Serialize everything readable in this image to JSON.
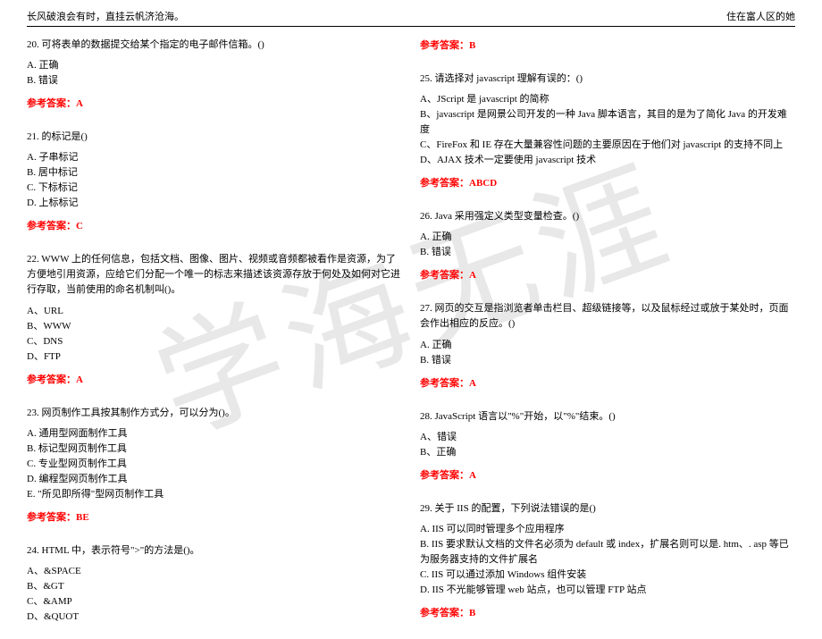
{
  "header": {
    "left": "长风破浪会有时，直挂云帆济沧海。",
    "right": "住在富人区的她"
  },
  "watermark": "学海无涯",
  "ans_label": "参考答案：",
  "left": {
    "q20": {
      "stem": "20. 可将表单的数据提交给某个指定的电子邮件信箱。()",
      "a": "A. 正确",
      "b": "B. 错误",
      "ans": "A"
    },
    "q21": {
      "stem": "21. 的标记是()",
      "a": "A. 子串标记",
      "b": "B. 居中标记",
      "c": "C. 下标标记",
      "d": "D. 上标标记",
      "ans": "C"
    },
    "q22": {
      "stem": "22. WWW 上的任何信息，包括文档、图像、图片、视频或音频都被看作是资源，为了方便地引用资源，应给它们分配一个唯一的标志来描述该资源存放于何处及如何对它进行存取，当前使用的命名机制叫()。",
      "a": "A、URL",
      "b": "B、WWW",
      "c": "C、DNS",
      "d": "D、FTP",
      "ans": "A"
    },
    "q23": {
      "stem": "23. 网页制作工具按其制作方式分，可以分为()。",
      "a": "A. 通用型网面制作工具",
      "b": "B. 标记型网页制作工具",
      "c": "C. 专业型网页制作工具",
      "d": "D. 编程型网页制作工具",
      "e": "E. \"所见即所得\"型网页制作工具",
      "ans": "BE"
    },
    "q24": {
      "stem": "24. HTML 中，表示符号\">\"的方法是()。",
      "a": "A、&SPACE",
      "b": "B、&GT",
      "c": "C、&AMP",
      "d": "D、&QUOT"
    }
  },
  "right": {
    "q24ans": "B",
    "q25": {
      "stem": "25. 请选择对 javascript 理解有误的：()",
      "a": "A、JScript 是 javascript 的简称",
      "b": "B、javascript 是网景公司开发的一种 Java 脚本语言，其目的是为了简化 Java 的开发难度",
      "c": "C、FireFox 和 IE 存在大量兼容性问题的主要原因在于他们对 javascript 的支持不同上",
      "d": "D、AJAX 技术一定要使用 javascript 技术",
      "ans": "ABCD"
    },
    "q26": {
      "stem": "26. Java 采用强定义类型变量检查。()",
      "a": "A. 正确",
      "b": "B. 错误",
      "ans": "A"
    },
    "q27": {
      "stem": "27. 网页的交互是指浏览者单击栏目、超级链接等，以及鼠标经过或放于某处时，页面会作出相应的反应。()",
      "a": "A. 正确",
      "b": "B. 错误",
      "ans": "A"
    },
    "q28": {
      "stem": "28. JavaScript 语言以\"%\"开始，以\"%\"结束。()",
      "a": "A、错误",
      "b": "B、正确",
      "ans": "A"
    },
    "q29": {
      "stem": "29. 关于 IIS 的配置，下列说法错误的是()",
      "a": "A. IIS 可以同时管理多个应用程序",
      "b": "B. IIS 要求默认文档的文件名必须为 default 或 index，扩展名则可以是. htm、. asp 等已为服务器支持的文件扩展名",
      "c": "C. IIS 可以通过添加 Windows 组件安装",
      "d": "D. IIS 不光能够管理 web 站点，也可以管理 FTP 站点",
      "ans": "B"
    }
  }
}
